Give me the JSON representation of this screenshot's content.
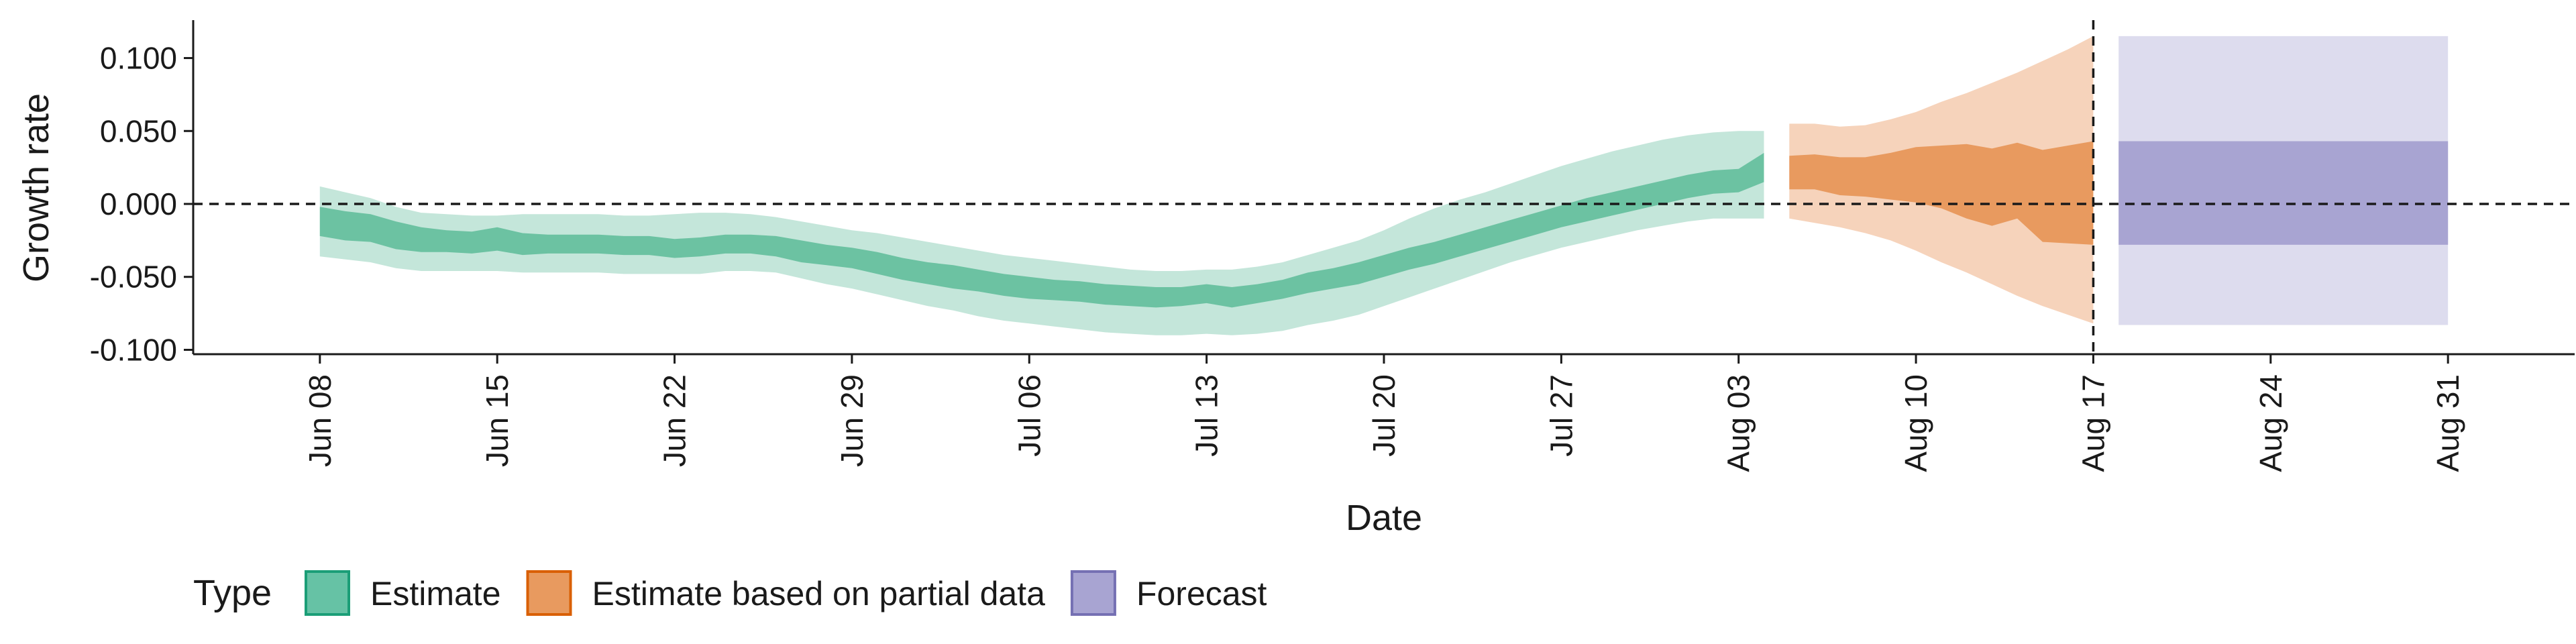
{
  "chart_data": {
    "type": "area",
    "xlabel": "Date",
    "ylabel": "Growth rate",
    "x_ticks": [
      "2020-06-08",
      "2020-06-15",
      "2020-06-22",
      "2020-06-29",
      "2020-07-06",
      "2020-07-13",
      "2020-07-20",
      "2020-07-27",
      "2020-08-03",
      "2020-08-10",
      "2020-08-17",
      "2020-08-24",
      "2020-08-31"
    ],
    "x_tick_labels": [
      "Jun 08",
      "Jun 15",
      "Jun 22",
      "Jun 29",
      "Jul 06",
      "Jul 13",
      "Jul 20",
      "Jul 27",
      "Aug 03",
      "Aug 10",
      "Aug 17",
      "Aug 24",
      "Aug 31"
    ],
    "xlim": [
      "2020-06-03",
      "2020-09-05"
    ],
    "y_ticks": [
      0.1,
      0.05,
      0.0,
      -0.05,
      -0.1
    ],
    "y_tick_labels": [
      "0.100",
      "0.050",
      "0.000",
      "-0.050",
      "-0.100"
    ],
    "ylim": [
      -0.103,
      0.126
    ],
    "hline": 0.0,
    "vline": "2020-08-17",
    "grid": false,
    "legend": {
      "title": "Type",
      "position": "bottom-left",
      "items": [
        {
          "label": "Estimate",
          "color": "#66c2a5",
          "border": "#1b9e77"
        },
        {
          "label": "Estimate based on partial data",
          "color": "#e89a5f",
          "border": "#d95f02"
        },
        {
          "label": "Forecast",
          "color": "#a8a4d2",
          "border": "#7570b3"
        }
      ]
    },
    "series": [
      {
        "name": "Estimate",
        "outer_color": "#c4e6da",
        "inner_color": "#6cc2a2",
        "x": [
          "2020-06-08",
          "2020-06-09",
          "2020-06-10",
          "2020-06-11",
          "2020-06-12",
          "2020-06-13",
          "2020-06-14",
          "2020-06-15",
          "2020-06-16",
          "2020-06-17",
          "2020-06-18",
          "2020-06-19",
          "2020-06-20",
          "2020-06-21",
          "2020-06-22",
          "2020-06-23",
          "2020-06-24",
          "2020-06-25",
          "2020-06-26",
          "2020-06-27",
          "2020-06-28",
          "2020-06-29",
          "2020-06-30",
          "2020-07-01",
          "2020-07-02",
          "2020-07-03",
          "2020-07-04",
          "2020-07-05",
          "2020-07-06",
          "2020-07-07",
          "2020-07-08",
          "2020-07-09",
          "2020-07-10",
          "2020-07-11",
          "2020-07-12",
          "2020-07-13",
          "2020-07-14",
          "2020-07-15",
          "2020-07-16",
          "2020-07-17",
          "2020-07-18",
          "2020-07-19",
          "2020-07-20",
          "2020-07-21",
          "2020-07-22",
          "2020-07-23",
          "2020-07-24",
          "2020-07-25",
          "2020-07-26",
          "2020-07-27",
          "2020-07-28",
          "2020-07-29",
          "2020-07-30",
          "2020-07-31",
          "2020-08-01",
          "2020-08-02",
          "2020-08-03",
          "2020-08-04"
        ],
        "upper90": [
          0.012,
          0.008,
          0.004,
          -0.002,
          -0.006,
          -0.007,
          -0.008,
          -0.008,
          -0.007,
          -0.007,
          -0.007,
          -0.007,
          -0.008,
          -0.008,
          -0.007,
          -0.006,
          -0.006,
          -0.007,
          -0.009,
          -0.012,
          -0.015,
          -0.018,
          -0.02,
          -0.023,
          -0.026,
          -0.029,
          -0.032,
          -0.035,
          -0.037,
          -0.039,
          -0.041,
          -0.043,
          -0.045,
          -0.046,
          -0.046,
          -0.045,
          -0.045,
          -0.043,
          -0.04,
          -0.035,
          -0.03,
          -0.025,
          -0.018,
          -0.01,
          -0.003,
          0.003,
          0.008,
          0.014,
          0.02,
          0.026,
          0.031,
          0.036,
          0.04,
          0.044,
          0.047,
          0.049,
          0.05,
          0.05
        ],
        "upper50": [
          -0.002,
          -0.005,
          -0.007,
          -0.012,
          -0.016,
          -0.018,
          -0.019,
          -0.016,
          -0.02,
          -0.021,
          -0.021,
          -0.021,
          -0.022,
          -0.022,
          -0.024,
          -0.023,
          -0.021,
          -0.021,
          -0.022,
          -0.025,
          -0.028,
          -0.03,
          -0.033,
          -0.037,
          -0.04,
          -0.042,
          -0.045,
          -0.048,
          -0.05,
          -0.052,
          -0.053,
          -0.055,
          -0.056,
          -0.057,
          -0.057,
          -0.055,
          -0.057,
          -0.055,
          -0.052,
          -0.047,
          -0.044,
          -0.04,
          -0.035,
          -0.03,
          -0.026,
          -0.021,
          -0.016,
          -0.011,
          -0.006,
          -0.001,
          0.004,
          0.008,
          0.012,
          0.016,
          0.02,
          0.023,
          0.024,
          0.035
        ],
        "lower50": [
          -0.022,
          -0.025,
          -0.026,
          -0.031,
          -0.033,
          -0.033,
          -0.034,
          -0.032,
          -0.035,
          -0.034,
          -0.034,
          -0.034,
          -0.035,
          -0.035,
          -0.037,
          -0.036,
          -0.034,
          -0.034,
          -0.036,
          -0.04,
          -0.042,
          -0.044,
          -0.048,
          -0.052,
          -0.055,
          -0.058,
          -0.06,
          -0.063,
          -0.065,
          -0.066,
          -0.067,
          -0.069,
          -0.07,
          -0.071,
          -0.07,
          -0.068,
          -0.071,
          -0.068,
          -0.065,
          -0.061,
          -0.058,
          -0.055,
          -0.05,
          -0.045,
          -0.041,
          -0.036,
          -0.031,
          -0.026,
          -0.021,
          -0.016,
          -0.012,
          -0.008,
          -0.004,
          0.0,
          0.004,
          0.007,
          0.008,
          0.015
        ],
        "lower90": [
          -0.036,
          -0.038,
          -0.04,
          -0.044,
          -0.046,
          -0.046,
          -0.046,
          -0.046,
          -0.047,
          -0.047,
          -0.047,
          -0.047,
          -0.048,
          -0.048,
          -0.048,
          -0.048,
          -0.046,
          -0.046,
          -0.047,
          -0.051,
          -0.055,
          -0.058,
          -0.062,
          -0.066,
          -0.07,
          -0.073,
          -0.077,
          -0.08,
          -0.082,
          -0.084,
          -0.086,
          -0.088,
          -0.089,
          -0.09,
          -0.09,
          -0.089,
          -0.09,
          -0.089,
          -0.087,
          -0.083,
          -0.08,
          -0.076,
          -0.07,
          -0.064,
          -0.058,
          -0.052,
          -0.046,
          -0.04,
          -0.035,
          -0.03,
          -0.026,
          -0.022,
          -0.018,
          -0.015,
          -0.012,
          -0.01,
          -0.01,
          -0.01
        ]
      },
      {
        "name": "Estimate based on partial data",
        "outer_color": "#f6d3bb",
        "inner_color": "#e89a5f",
        "x": [
          "2020-08-05",
          "2020-08-06",
          "2020-08-07",
          "2020-08-08",
          "2020-08-09",
          "2020-08-10",
          "2020-08-11",
          "2020-08-12",
          "2020-08-13",
          "2020-08-14",
          "2020-08-15",
          "2020-08-16",
          "2020-08-17"
        ],
        "upper90": [
          0.055,
          0.055,
          0.053,
          0.054,
          0.058,
          0.063,
          0.07,
          0.076,
          0.083,
          0.09,
          0.098,
          0.106,
          0.115
        ],
        "upper50": [
          0.033,
          0.034,
          0.032,
          0.032,
          0.035,
          0.039,
          0.04,
          0.041,
          0.038,
          0.042,
          0.037,
          0.04,
          0.043
        ],
        "lower50": [
          0.01,
          0.01,
          0.006,
          0.005,
          0.003,
          0.001,
          -0.003,
          -0.01,
          -0.015,
          -0.01,
          -0.026,
          -0.027,
          -0.028
        ],
        "lower90": [
          -0.01,
          -0.013,
          -0.016,
          -0.02,
          -0.025,
          -0.032,
          -0.04,
          -0.047,
          -0.055,
          -0.063,
          -0.07,
          -0.076,
          -0.082
        ]
      },
      {
        "name": "Forecast",
        "outer_color": "#dddcee",
        "inner_color": "#a8a4d2",
        "x": [
          "2020-08-18",
          "2020-08-31"
        ],
        "upper90": [
          0.115,
          0.115
        ],
        "upper50": [
          0.043,
          0.043
        ],
        "lower50": [
          -0.028,
          -0.028
        ],
        "lower90": [
          -0.083,
          -0.083
        ]
      }
    ]
  }
}
